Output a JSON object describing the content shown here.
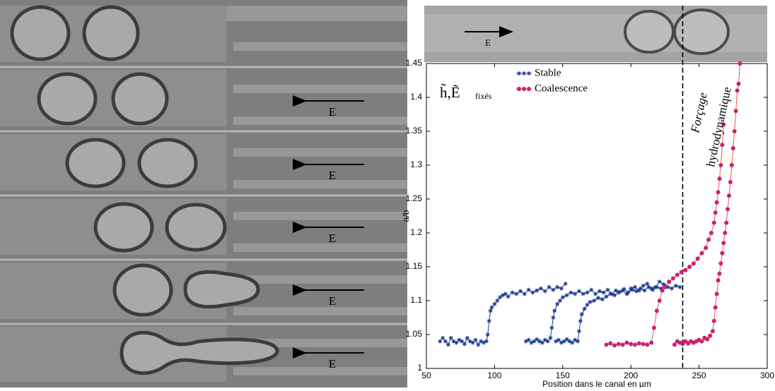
{
  "panels": {
    "left_labels": [
      "E",
      "E",
      "E",
      "E",
      "E"
    ],
    "top_label": "E"
  },
  "chart_data": {
    "type": "line",
    "xlabel": "Position dans le canal en µm",
    "ylabel": "a/b",
    "annotations": [
      "h̃,Ẽ",
      "fixés",
      "Forçage",
      "hydrodynamique"
    ],
    "vline": 238,
    "xlim": [
      50,
      300
    ],
    "xticks": [
      50,
      100,
      150,
      200,
      250,
      300
    ],
    "ylim": [
      1,
      1.45
    ],
    "yticks": [
      1,
      1.05,
      1.1,
      1.15,
      1.2,
      1.25,
      1.3,
      1.35,
      1.4,
      1.45
    ],
    "series": [
      {
        "name": "Stable",
        "color": "#1c3a8f",
        "marker": "star",
        "x": [
          60,
          62,
          64,
          66,
          68,
          70,
          72,
          74,
          76,
          78,
          80,
          82,
          84,
          86,
          88,
          90,
          92,
          94,
          95,
          96,
          97,
          98,
          100,
          102,
          104,
          106,
          108,
          110,
          113,
          116,
          119,
          122,
          125,
          128,
          131,
          134,
          137,
          140,
          143,
          146,
          149,
          152,
          null,
          123,
          125,
          127,
          129,
          131,
          133,
          135,
          137,
          139,
          141,
          142,
          143,
          144,
          146,
          148,
          150,
          153,
          156,
          159,
          162,
          165,
          168,
          171,
          174,
          177,
          180,
          183,
          186,
          189,
          192,
          195,
          198,
          201,
          204,
          207,
          210,
          213,
          216,
          219,
          222,
          225,
          null,
          145,
          147,
          149,
          151,
          153,
          155,
          157,
          159,
          161,
          162,
          163,
          164,
          166,
          168,
          170,
          173,
          176,
          179,
          182,
          185,
          188,
          191,
          194,
          197,
          200,
          203,
          206,
          209,
          212,
          215,
          218,
          221,
          224,
          227,
          230,
          233,
          236
        ],
        "values": [
          1.04,
          1.045,
          1.04,
          1.035,
          1.045,
          1.04,
          1.038,
          1.042,
          1.04,
          1.036,
          1.045,
          1.04,
          1.038,
          1.042,
          1.035,
          1.04,
          1.038,
          1.04,
          1.05,
          1.07,
          1.085,
          1.09,
          1.095,
          1.1,
          1.105,
          1.108,
          1.11,
          1.106,
          1.112,
          1.11,
          1.114,
          1.11,
          1.116,
          1.112,
          1.115,
          1.118,
          1.114,
          1.12,
          1.116,
          1.12,
          1.118,
          1.125,
          null,
          1.04,
          1.042,
          1.038,
          1.04,
          1.043,
          1.04,
          1.038,
          1.042,
          1.04,
          1.045,
          1.06,
          1.075,
          1.085,
          1.095,
          1.1,
          1.105,
          1.108,
          1.112,
          1.11,
          1.114,
          1.11,
          1.112,
          1.116,
          1.11,
          1.114,
          1.112,
          1.116,
          1.11,
          1.115,
          1.113,
          1.117,
          1.112,
          1.116,
          1.114,
          1.118,
          1.115,
          1.12,
          1.116,
          1.12,
          1.118,
          1.122,
          null,
          1.04,
          1.042,
          1.038,
          1.04,
          1.043,
          1.04,
          1.038,
          1.042,
          1.04,
          1.055,
          1.07,
          1.08,
          1.088,
          1.094,
          1.098,
          1.1,
          1.104,
          1.102,
          1.106,
          1.11,
          1.108,
          1.112,
          1.115,
          1.11,
          1.118,
          1.12,
          1.115,
          1.122,
          1.125,
          1.118,
          1.12,
          1.128,
          1.124,
          1.12,
          1.118,
          1.122,
          1.12
        ]
      },
      {
        "name": "Coalescence",
        "color": "#d01f6c",
        "line_color": "#ec5a3a",
        "marker": "circle",
        "x": [
          182,
          185,
          188,
          191,
          194,
          197,
          200,
          203,
          206,
          209,
          212,
          215,
          217,
          219,
          221,
          223,
          225,
          228,
          231,
          234,
          237,
          240,
          243,
          246,
          249,
          252,
          255,
          257,
          259,
          261,
          262,
          263,
          264,
          265,
          266,
          267,
          268,
          null,
          232,
          234,
          236,
          238,
          240,
          242,
          244,
          246,
          248,
          250,
          252,
          254,
          256,
          258,
          260,
          261,
          262,
          263,
          264,
          265,
          266,
          267,
          268,
          269,
          270,
          271,
          272,
          273,
          274,
          275,
          276,
          277,
          278,
          279,
          280
        ],
        "values": [
          1.035,
          1.037,
          1.034,
          1.036,
          1.035,
          1.038,
          1.036,
          1.035,
          1.037,
          1.036,
          1.035,
          1.038,
          1.06,
          1.085,
          1.1,
          1.115,
          1.12,
          1.128,
          1.133,
          1.138,
          1.142,
          1.145,
          1.15,
          1.155,
          1.162,
          1.17,
          1.178,
          1.19,
          1.2,
          1.215,
          1.23,
          1.245,
          1.26,
          1.28,
          1.3,
          1.33,
          1.36,
          null,
          1.035,
          1.04,
          1.038,
          1.036,
          1.04,
          1.037,
          1.04,
          1.038,
          1.04,
          1.042,
          1.04,
          1.045,
          1.043,
          1.048,
          1.055,
          1.07,
          1.09,
          1.11,
          1.13,
          1.14,
          1.155,
          1.17,
          1.185,
          1.2,
          1.215,
          1.235,
          1.255,
          1.275,
          1.3,
          1.325,
          1.35,
          1.38,
          1.41,
          1.42,
          1.45
        ]
      }
    ]
  }
}
